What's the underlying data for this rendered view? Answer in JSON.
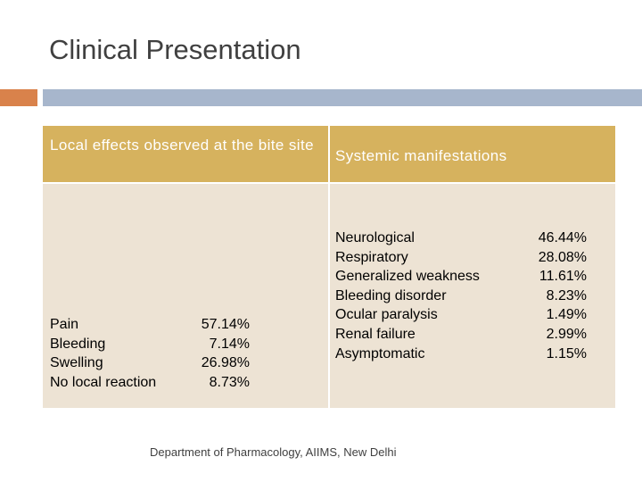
{
  "slide": {
    "title": "Clinical Presentation",
    "footer": "Department of Pharmacology, AIIMS, New Delhi"
  },
  "table": {
    "headers": [
      "Local effects observed at the bite site",
      "Systemic manifestations"
    ],
    "local_effects": [
      {
        "label": "Pain",
        "value": "57.14%"
      },
      {
        "label": "Bleeding",
        "value": "7.14%"
      },
      {
        "label": "Swelling",
        "value": "26.98%"
      },
      {
        "label": "No local reaction",
        "value": "8.73%"
      }
    ],
    "systemic": [
      {
        "label": "Neurological",
        "value": "46.44%"
      },
      {
        "label": "Respiratory",
        "value": "28.08%"
      },
      {
        "label": "Generalized weakness",
        "value": "11.61%"
      },
      {
        "label": "Bleeding disorder",
        "value": "8.23%"
      },
      {
        "label": "Ocular paralysis",
        "value": "1.49%"
      },
      {
        "label": "Renal failure",
        "value": "2.99%"
      },
      {
        "label": "Asymptomatic",
        "value": "1.15%"
      }
    ]
  },
  "colors": {
    "accent_orange": "#d9824b",
    "accent_blue": "#a7b6cc",
    "header_fill": "#d6b25e",
    "body_fill": "#ede3d4"
  }
}
